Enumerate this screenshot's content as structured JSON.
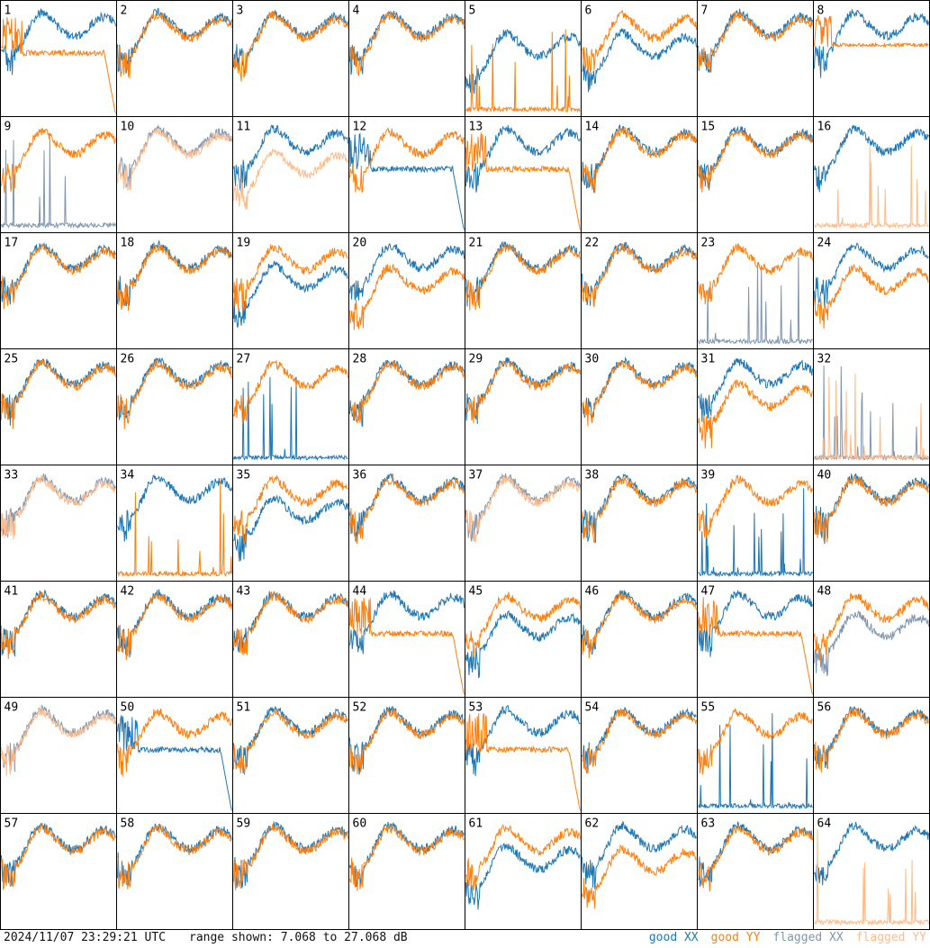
{
  "footer": {
    "timestamp": "2024/11/07 23:29:21 UTC",
    "range_text": "range shown: 7.068 to 27.068 dB"
  },
  "legend": [
    {
      "id": "good-xx",
      "label": "good XX",
      "color": "#1f77b4"
    },
    {
      "id": "good-yy",
      "label": "good YY",
      "color": "#ff7f0e"
    },
    {
      "id": "flagged-xx",
      "label": "flagged XX",
      "color": "#7f96b0"
    },
    {
      "id": "flagged-yy",
      "label": "flagged YY",
      "color": "#ffbb8a"
    }
  ],
  "chart_data": {
    "type": "line",
    "panels": 64,
    "grid": {
      "rows": 8,
      "cols": 8
    },
    "ylim_db": [
      7.068,
      27.068
    ],
    "panel_labels": [
      "1",
      "2",
      "3",
      "4",
      "5",
      "6",
      "7",
      "8",
      "9",
      "10",
      "11",
      "12",
      "13",
      "14",
      "15",
      "16",
      "17",
      "18",
      "19",
      "20",
      "21",
      "22",
      "23",
      "24",
      "25",
      "26",
      "27",
      "28",
      "29",
      "30",
      "31",
      "32",
      "33",
      "34",
      "35",
      "36",
      "37",
      "38",
      "39",
      "40",
      "41",
      "42",
      "43",
      "44",
      "45",
      "46",
      "47",
      "48",
      "49",
      "50",
      "51",
      "52",
      "53",
      "54",
      "55",
      "56",
      "57",
      "58",
      "59",
      "60",
      "61",
      "62",
      "63",
      "64"
    ],
    "series": [
      {
        "name": "good XX",
        "color": "#1f77b4"
      },
      {
        "name": "good YY",
        "color": "#ff7f0e"
      },
      {
        "name": "flagged XX",
        "color": "#7f96b0"
      },
      {
        "name": "flagged YY",
        "color": "#ffbb8a"
      }
    ],
    "panel_styles": [
      {
        "panel": 1,
        "xx": "good",
        "yy": "good",
        "xx_shape": "normal",
        "yy_shape": "dropoff"
      },
      {
        "panel": 2,
        "xx": "good",
        "yy": "good"
      },
      {
        "panel": 3,
        "xx": "good",
        "yy": "good"
      },
      {
        "panel": 4,
        "xx": "good",
        "yy": "good"
      },
      {
        "panel": 5,
        "xx": "good",
        "yy": "good",
        "xx_shape": "low",
        "yy_shape": "spiky"
      },
      {
        "panel": 6,
        "xx": "good",
        "yy": "good",
        "xx_shape": "low"
      },
      {
        "panel": 7,
        "xx": "good",
        "yy": "good"
      },
      {
        "panel": 8,
        "xx": "good",
        "yy": "good",
        "xx_shape": "normal",
        "yy_shape": "flat"
      },
      {
        "panel": 9,
        "xx": "flagged",
        "yy": "good",
        "xx_shape": "spiky",
        "yy_shape": "normal"
      },
      {
        "panel": 10,
        "xx": "flagged",
        "yy": "flagged"
      },
      {
        "panel": 11,
        "xx": "good",
        "yy": "flagged",
        "yy_shape": "low"
      },
      {
        "panel": 12,
        "xx": "good",
        "yy": "good",
        "xx_shape": "dropoff"
      },
      {
        "panel": 13,
        "xx": "good",
        "yy": "good",
        "yy_shape": "dropoff"
      },
      {
        "panel": 14,
        "xx": "good",
        "yy": "good"
      },
      {
        "panel": 15,
        "xx": "good",
        "yy": "good"
      },
      {
        "panel": 16,
        "xx": "good",
        "yy": "flagged",
        "yy_shape": "spiky"
      },
      {
        "panel": 17,
        "xx": "good",
        "yy": "good"
      },
      {
        "panel": 18,
        "xx": "good",
        "yy": "good"
      },
      {
        "panel": 19,
        "xx": "good",
        "yy": "good",
        "xx_shape": "low"
      },
      {
        "panel": 20,
        "xx": "good",
        "yy": "good",
        "yy_shape": "low"
      },
      {
        "panel": 21,
        "xx": "good",
        "yy": "good"
      },
      {
        "panel": 22,
        "xx": "good",
        "yy": "good"
      },
      {
        "panel": 23,
        "xx": "flagged",
        "yy": "good",
        "xx_shape": "spiky"
      },
      {
        "panel": 24,
        "xx": "good",
        "yy": "good",
        "yy_shape": "low"
      },
      {
        "panel": 25,
        "xx": "good",
        "yy": "good"
      },
      {
        "panel": 26,
        "xx": "good",
        "yy": "good"
      },
      {
        "panel": 27,
        "xx": "good",
        "yy": "good",
        "xx_shape": "spiky",
        "yy_shape": "normal"
      },
      {
        "panel": 28,
        "xx": "good",
        "yy": "good"
      },
      {
        "panel": 29,
        "xx": "good",
        "yy": "good"
      },
      {
        "panel": 30,
        "xx": "good",
        "yy": "good"
      },
      {
        "panel": 31,
        "xx": "good",
        "yy": "good",
        "yy_shape": "low"
      },
      {
        "panel": 32,
        "xx": "flagged",
        "yy": "flagged",
        "xx_shape": "spiky",
        "yy_shape": "spiky"
      },
      {
        "panel": 33,
        "xx": "flagged",
        "yy": "flagged"
      },
      {
        "panel": 34,
        "xx": "good",
        "yy": "good",
        "xx_shape": "normal",
        "yy_shape": "spiky"
      },
      {
        "panel": 35,
        "xx": "good",
        "yy": "good",
        "xx_shape": "low"
      },
      {
        "panel": 36,
        "xx": "good",
        "yy": "good"
      },
      {
        "panel": 37,
        "xx": "flagged",
        "yy": "flagged"
      },
      {
        "panel": 38,
        "xx": "good",
        "yy": "good"
      },
      {
        "panel": 39,
        "xx": "good",
        "yy": "good",
        "xx_shape": "spiky",
        "yy_shape": "normal"
      },
      {
        "panel": 40,
        "xx": "good",
        "yy": "good"
      },
      {
        "panel": 41,
        "xx": "good",
        "yy": "good"
      },
      {
        "panel": 42,
        "xx": "good",
        "yy": "good"
      },
      {
        "panel": 43,
        "xx": "good",
        "yy": "good"
      },
      {
        "panel": 44,
        "xx": "good",
        "yy": "good",
        "yy_shape": "dropoff"
      },
      {
        "panel": 45,
        "xx": "good",
        "yy": "good",
        "xx_shape": "low"
      },
      {
        "panel": 46,
        "xx": "good",
        "yy": "good"
      },
      {
        "panel": 47,
        "xx": "good",
        "yy": "good",
        "yy_shape": "dropoff"
      },
      {
        "panel": 48,
        "xx": "flagged",
        "yy": "good",
        "xx_shape": "low"
      },
      {
        "panel": 49,
        "xx": "flagged",
        "yy": "flagged"
      },
      {
        "panel": 50,
        "xx": "good",
        "yy": "good",
        "xx_shape": "dropoff"
      },
      {
        "panel": 51,
        "xx": "good",
        "yy": "good"
      },
      {
        "panel": 52,
        "xx": "good",
        "yy": "good"
      },
      {
        "panel": 53,
        "xx": "good",
        "yy": "good",
        "yy_shape": "dropoff"
      },
      {
        "panel": 54,
        "xx": "good",
        "yy": "good"
      },
      {
        "panel": 55,
        "xx": "good",
        "yy": "good",
        "xx_shape": "spiky",
        "yy_shape": "normal"
      },
      {
        "panel": 56,
        "xx": "good",
        "yy": "good"
      },
      {
        "panel": 57,
        "xx": "good",
        "yy": "good"
      },
      {
        "panel": 58,
        "xx": "good",
        "yy": "good"
      },
      {
        "panel": 59,
        "xx": "good",
        "yy": "good"
      },
      {
        "panel": 60,
        "xx": "good",
        "yy": "good"
      },
      {
        "panel": 61,
        "xx": "good",
        "yy": "good",
        "xx_shape": "low"
      },
      {
        "panel": 62,
        "xx": "good",
        "yy": "good",
        "yy_shape": "low"
      },
      {
        "panel": 63,
        "xx": "good",
        "yy": "good"
      },
      {
        "panel": 64,
        "xx": "good",
        "yy": "flagged",
        "xx_shape": "normal",
        "yy_shape": "spiky"
      }
    ]
  }
}
